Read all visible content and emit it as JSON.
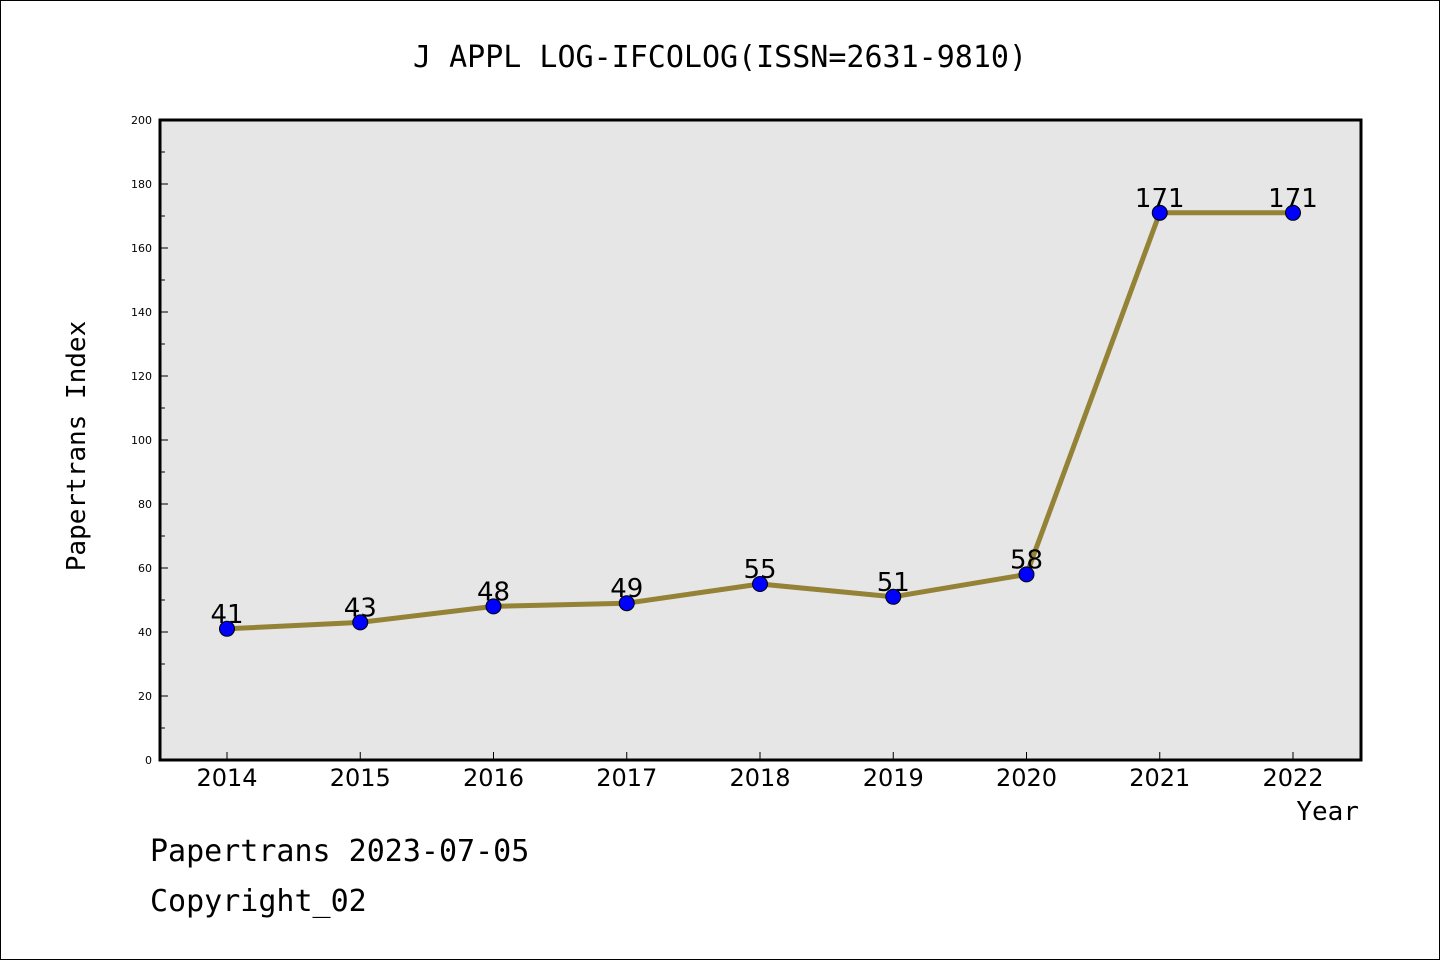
{
  "chart_data": {
    "type": "line",
    "title": "J APPL LOG-IFCOLOG(ISSN=2631-9810)",
    "xlabel": "Year",
    "ylabel": "Papertrans Index",
    "categories": [
      "2014",
      "2015",
      "2016",
      "2017",
      "2018",
      "2019",
      "2020",
      "2021",
      "2022"
    ],
    "series": [
      {
        "values": [
          41,
          43,
          48,
          49,
          55,
          51,
          58,
          171,
          171
        ]
      }
    ],
    "ylim": [
      0,
      200
    ],
    "yticks": [
      0,
      20,
      40,
      60,
      80,
      100,
      120,
      140,
      160,
      180,
      200
    ],
    "grid": false,
    "colors": {
      "line": "#948236",
      "marker": "#0000ff",
      "plot_background": "#e6e6e6"
    }
  },
  "footer": {
    "date": "Papertrans 2023-07-05",
    "copyright": "Copyright_02"
  }
}
